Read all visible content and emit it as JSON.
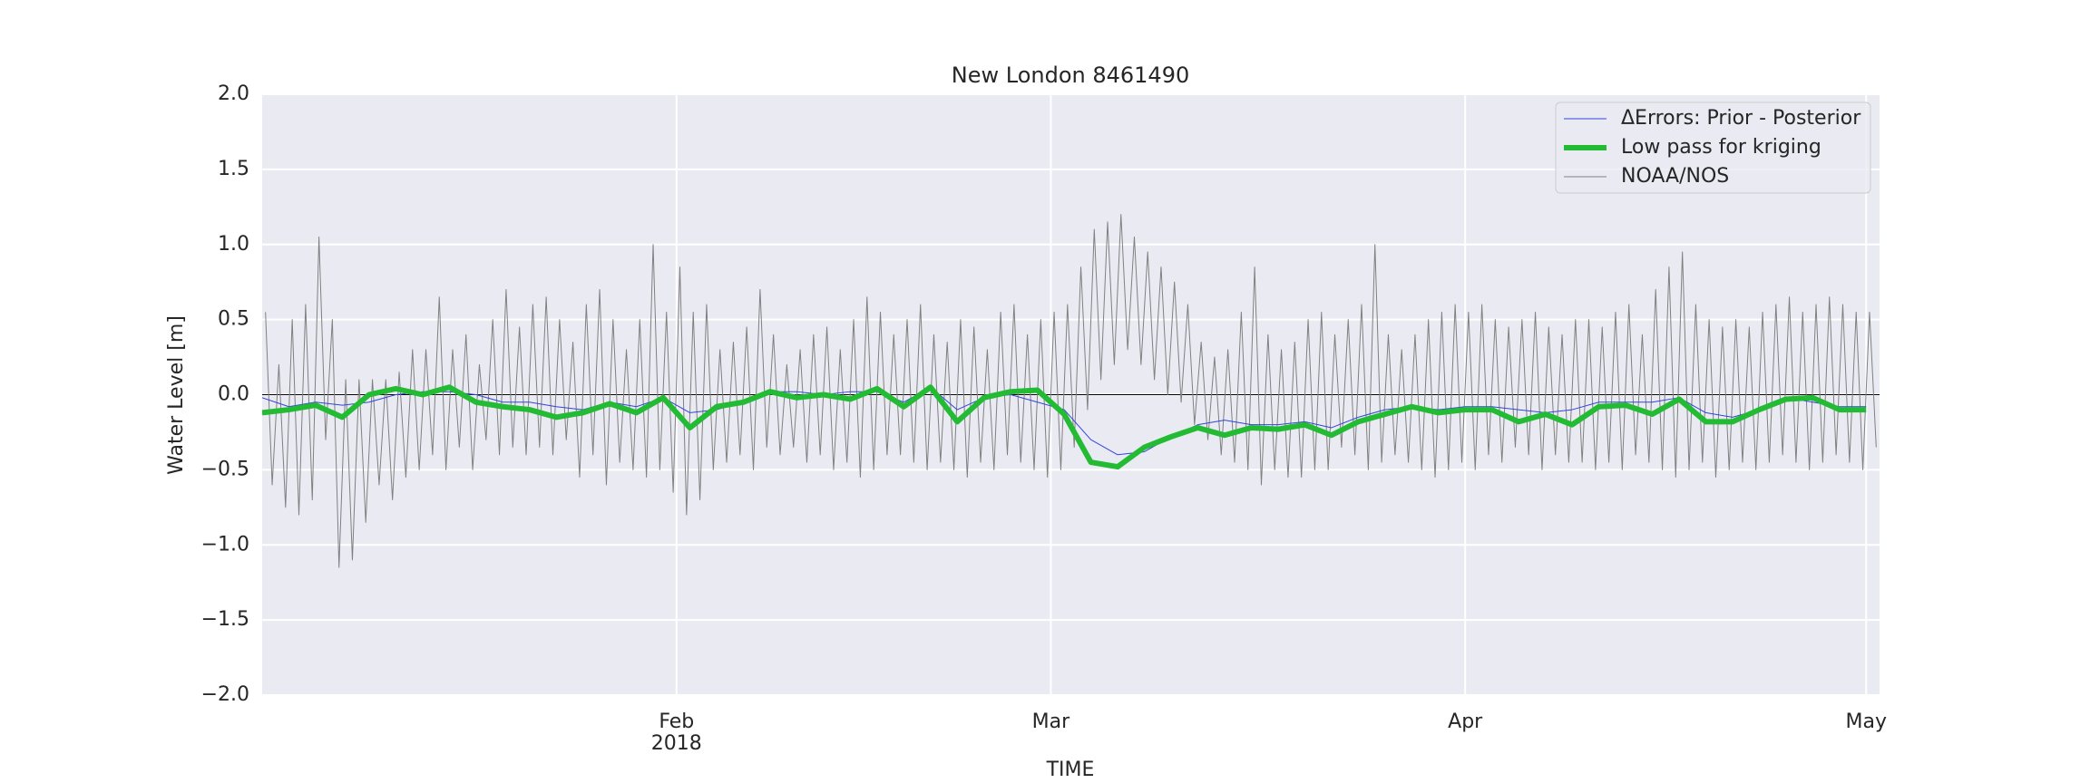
{
  "chart_data": {
    "type": "line",
    "title": "New London  8461490",
    "xlabel": "TIME",
    "ylabel": "Water Level [m]",
    "xlim": [
      "2018-01-01T00",
      "2018-05-02T00"
    ],
    "xticks": [
      {
        "value": "2018-02-01",
        "label": [
          "Feb",
          "2018"
        ]
      },
      {
        "value": "2018-03-01",
        "label": [
          "Mar"
        ]
      },
      {
        "value": "2018-04-01",
        "label": [
          "Apr"
        ]
      },
      {
        "value": "2018-05-01",
        "label": [
          "May"
        ]
      }
    ],
    "ylim": [
      -2,
      2
    ],
    "yticks": [
      {
        "value": -2,
        "label": "−2.0"
      },
      {
        "value": -1.5,
        "label": "−1.5"
      },
      {
        "value": -1,
        "label": "−1.0"
      },
      {
        "value": -0.5,
        "label": "−0.5"
      },
      {
        "value": 0,
        "label": "0.0"
      },
      {
        "value": 0.5,
        "label": "0.5"
      },
      {
        "value": 1,
        "label": "1.0"
      },
      {
        "value": 1.5,
        "label": "1.5"
      },
      {
        "value": 2,
        "label": "2.0"
      }
    ],
    "grid": true,
    "hline": 0,
    "legend": "upper right",
    "series": [
      {
        "name": "ΔErrors: Prior - Posterior",
        "color": "#3344dd",
        "linewidth": 1,
        "x": [
          "2018-01-01",
          "2018-01-03",
          "2018-01-05",
          "2018-01-07",
          "2018-01-09",
          "2018-01-11",
          "2018-01-13",
          "2018-01-15",
          "2018-01-17",
          "2018-01-19",
          "2018-01-21",
          "2018-01-23",
          "2018-01-25",
          "2018-01-27",
          "2018-01-29",
          "2018-01-31",
          "2018-02-02",
          "2018-02-04",
          "2018-02-06",
          "2018-02-08",
          "2018-02-10",
          "2018-02-12",
          "2018-02-14",
          "2018-02-16",
          "2018-02-18",
          "2018-02-20",
          "2018-02-22",
          "2018-02-24",
          "2018-02-26",
          "2018-02-28",
          "2018-03-02",
          "2018-03-04",
          "2018-03-06",
          "2018-03-08",
          "2018-03-10",
          "2018-03-12",
          "2018-03-14",
          "2018-03-16",
          "2018-03-18",
          "2018-03-20",
          "2018-03-22",
          "2018-03-24",
          "2018-03-26",
          "2018-03-28",
          "2018-03-30",
          "2018-04-01",
          "2018-04-03",
          "2018-04-05",
          "2018-04-07",
          "2018-04-09",
          "2018-04-11",
          "2018-04-13",
          "2018-04-15",
          "2018-04-17",
          "2018-04-19",
          "2018-04-21",
          "2018-04-23",
          "2018-04-25",
          "2018-04-27",
          "2018-04-29",
          "2018-05-01"
        ],
        "values": [
          -0.02,
          -0.08,
          -0.05,
          -0.07,
          -0.05,
          0.0,
          0.02,
          0.02,
          0.0,
          -0.05,
          -0.05,
          -0.08,
          -0.1,
          -0.05,
          -0.08,
          -0.02,
          -0.12,
          -0.1,
          -0.05,
          0.02,
          0.02,
          0.0,
          0.02,
          0.02,
          -0.05,
          0.05,
          -0.1,
          -0.02,
          0.0,
          -0.05,
          -0.1,
          -0.3,
          -0.4,
          -0.38,
          -0.28,
          -0.2,
          -0.17,
          -0.2,
          -0.2,
          -0.18,
          -0.22,
          -0.15,
          -0.1,
          -0.08,
          -0.1,
          -0.08,
          -0.08,
          -0.1,
          -0.12,
          -0.1,
          -0.05,
          -0.05,
          -0.05,
          -0.02,
          -0.12,
          -0.15,
          -0.1,
          -0.02,
          -0.05,
          -0.08,
          -0.08
        ]
      },
      {
        "name": "Low pass for kriging",
        "color": "#22bb33",
        "linewidth": 6,
        "x": [
          "2018-01-01",
          "2018-01-03",
          "2018-01-05",
          "2018-01-07",
          "2018-01-09",
          "2018-01-11",
          "2018-01-13",
          "2018-01-15",
          "2018-01-17",
          "2018-01-19",
          "2018-01-21",
          "2018-01-23",
          "2018-01-25",
          "2018-01-27",
          "2018-01-29",
          "2018-01-31",
          "2018-02-02",
          "2018-02-04",
          "2018-02-06",
          "2018-02-08",
          "2018-02-10",
          "2018-02-12",
          "2018-02-14",
          "2018-02-16",
          "2018-02-18",
          "2018-02-20",
          "2018-02-22",
          "2018-02-24",
          "2018-02-26",
          "2018-02-28",
          "2018-03-02",
          "2018-03-04",
          "2018-03-06",
          "2018-03-08",
          "2018-03-10",
          "2018-03-12",
          "2018-03-14",
          "2018-03-16",
          "2018-03-18",
          "2018-03-20",
          "2018-03-22",
          "2018-03-24",
          "2018-03-26",
          "2018-03-28",
          "2018-03-30",
          "2018-04-01",
          "2018-04-03",
          "2018-04-05",
          "2018-04-07",
          "2018-04-09",
          "2018-04-11",
          "2018-04-13",
          "2018-04-15",
          "2018-04-17",
          "2018-04-19",
          "2018-04-21",
          "2018-04-23",
          "2018-04-25",
          "2018-04-27",
          "2018-04-29",
          "2018-05-01"
        ],
        "values": [
          -0.12,
          -0.1,
          -0.07,
          -0.15,
          0.0,
          0.04,
          0.0,
          0.05,
          -0.05,
          -0.08,
          -0.1,
          -0.15,
          -0.12,
          -0.06,
          -0.12,
          -0.02,
          -0.22,
          -0.08,
          -0.05,
          0.02,
          -0.02,
          0.0,
          -0.03,
          0.04,
          -0.08,
          0.05,
          -0.18,
          -0.02,
          0.02,
          0.03,
          -0.13,
          -0.45,
          -0.48,
          -0.35,
          -0.28,
          -0.22,
          -0.27,
          -0.22,
          -0.23,
          -0.2,
          -0.27,
          -0.18,
          -0.13,
          -0.08,
          -0.12,
          -0.1,
          -0.1,
          -0.18,
          -0.13,
          -0.2,
          -0.08,
          -0.07,
          -0.13,
          -0.03,
          -0.18,
          -0.18,
          -0.1,
          -0.03,
          -0.02,
          -0.1,
          -0.1
        ]
      },
      {
        "name": "NOAA/NOS",
        "color": "#808080",
        "linewidth": 1,
        "x": [
          "2018-01-01T06",
          "2018-01-01T18",
          "2018-01-02T06",
          "2018-01-02T18",
          "2018-01-03T06",
          "2018-01-03T18",
          "2018-01-04T06",
          "2018-01-04T18",
          "2018-01-05T06",
          "2018-01-05T18",
          "2018-01-06T06",
          "2018-01-06T18",
          "2018-01-07T06",
          "2018-01-07T18",
          "2018-01-08T06",
          "2018-01-08T18",
          "2018-01-09T06",
          "2018-01-09T18",
          "2018-01-10T06",
          "2018-01-10T18",
          "2018-01-11T06",
          "2018-01-11T18",
          "2018-01-12T06",
          "2018-01-12T18",
          "2018-01-13T06",
          "2018-01-13T18",
          "2018-01-14T06",
          "2018-01-14T18",
          "2018-01-15T06",
          "2018-01-15T18",
          "2018-01-16T06",
          "2018-01-16T18",
          "2018-01-17T06",
          "2018-01-17T18",
          "2018-01-18T06",
          "2018-01-18T18",
          "2018-01-19T06",
          "2018-01-19T18",
          "2018-01-20T06",
          "2018-01-20T18",
          "2018-01-21T06",
          "2018-01-21T18",
          "2018-01-22T06",
          "2018-01-22T18",
          "2018-01-23T06",
          "2018-01-23T18",
          "2018-01-24T06",
          "2018-01-24T18",
          "2018-01-25T06",
          "2018-01-25T18",
          "2018-01-26T06",
          "2018-01-26T18",
          "2018-01-27T06",
          "2018-01-27T18",
          "2018-01-28T06",
          "2018-01-28T18",
          "2018-01-29T06",
          "2018-01-29T18",
          "2018-01-30T06",
          "2018-01-30T18",
          "2018-01-31T06",
          "2018-01-31T18",
          "2018-02-01T06",
          "2018-02-01T18",
          "2018-02-02T06",
          "2018-02-02T18",
          "2018-02-03T06",
          "2018-02-03T18",
          "2018-02-04T06",
          "2018-02-04T18",
          "2018-02-05T06",
          "2018-02-05T18",
          "2018-02-06T06",
          "2018-02-06T18",
          "2018-02-07T06",
          "2018-02-07T18",
          "2018-02-08T06",
          "2018-02-08T18",
          "2018-02-09T06",
          "2018-02-09T18",
          "2018-02-10T06",
          "2018-02-10T18",
          "2018-02-11T06",
          "2018-02-11T18",
          "2018-02-12T06",
          "2018-02-12T18",
          "2018-02-13T06",
          "2018-02-13T18",
          "2018-02-14T06",
          "2018-02-14T18",
          "2018-02-15T06",
          "2018-02-15T18",
          "2018-02-16T06",
          "2018-02-16T18",
          "2018-02-17T06",
          "2018-02-17T18",
          "2018-02-18T06",
          "2018-02-18T18",
          "2018-02-19T06",
          "2018-02-19T18",
          "2018-02-20T06",
          "2018-02-20T18",
          "2018-02-21T06",
          "2018-02-21T18",
          "2018-02-22T06",
          "2018-02-22T18",
          "2018-02-23T06",
          "2018-02-23T18",
          "2018-02-24T06",
          "2018-02-24T18",
          "2018-02-25T06",
          "2018-02-25T18",
          "2018-02-26T06",
          "2018-02-26T18",
          "2018-02-27T06",
          "2018-02-27T18",
          "2018-02-28T06",
          "2018-02-28T18",
          "2018-03-01T06",
          "2018-03-01T18",
          "2018-03-02T06",
          "2018-03-02T18",
          "2018-03-03T06",
          "2018-03-03T18",
          "2018-03-04T06",
          "2018-03-04T18",
          "2018-03-05T06",
          "2018-03-05T18",
          "2018-03-06T06",
          "2018-03-06T18",
          "2018-03-07T06",
          "2018-03-07T18",
          "2018-03-08T06",
          "2018-03-08T18",
          "2018-03-09T06",
          "2018-03-09T18",
          "2018-03-10T06",
          "2018-03-10T18",
          "2018-03-11T06",
          "2018-03-11T18",
          "2018-03-12T06",
          "2018-03-12T18",
          "2018-03-13T06",
          "2018-03-13T18",
          "2018-03-14T06",
          "2018-03-14T18",
          "2018-03-15T06",
          "2018-03-15T18",
          "2018-03-16T06",
          "2018-03-16T18",
          "2018-03-17T06",
          "2018-03-17T18",
          "2018-03-18T06",
          "2018-03-18T18",
          "2018-03-19T06",
          "2018-03-19T18",
          "2018-03-20T06",
          "2018-03-20T18",
          "2018-03-21T06",
          "2018-03-21T18",
          "2018-03-22T06",
          "2018-03-22T18",
          "2018-03-23T06",
          "2018-03-23T18",
          "2018-03-24T06",
          "2018-03-24T18",
          "2018-03-25T06",
          "2018-03-25T18",
          "2018-03-26T06",
          "2018-03-26T18",
          "2018-03-27T06",
          "2018-03-27T18",
          "2018-03-28T06",
          "2018-03-28T18",
          "2018-03-29T06",
          "2018-03-29T18",
          "2018-03-30T06",
          "2018-03-30T18",
          "2018-03-31T06",
          "2018-03-31T18",
          "2018-04-01T06",
          "2018-04-01T18",
          "2018-04-02T06",
          "2018-04-02T18",
          "2018-04-03T06",
          "2018-04-03T18",
          "2018-04-04T06",
          "2018-04-04T18",
          "2018-04-05T06",
          "2018-04-05T18",
          "2018-04-06T06",
          "2018-04-06T18",
          "2018-04-07T06",
          "2018-04-07T18",
          "2018-04-08T06",
          "2018-04-08T18",
          "2018-04-09T06",
          "2018-04-09T18",
          "2018-04-10T06",
          "2018-04-10T18",
          "2018-04-11T06",
          "2018-04-11T18",
          "2018-04-12T06",
          "2018-04-12T18",
          "2018-04-13T06",
          "2018-04-13T18",
          "2018-04-14T06",
          "2018-04-14T18",
          "2018-04-15T06",
          "2018-04-15T18",
          "2018-04-16T06",
          "2018-04-16T18",
          "2018-04-17T06",
          "2018-04-17T18",
          "2018-04-18T06",
          "2018-04-18T18",
          "2018-04-19T06",
          "2018-04-19T18",
          "2018-04-20T06",
          "2018-04-20T18",
          "2018-04-21T06",
          "2018-04-21T18",
          "2018-04-22T06",
          "2018-04-22T18",
          "2018-04-23T06",
          "2018-04-23T18",
          "2018-04-24T06",
          "2018-04-24T18",
          "2018-04-25T06",
          "2018-04-25T18",
          "2018-04-26T06",
          "2018-04-26T18",
          "2018-04-27T06",
          "2018-04-27T18",
          "2018-04-28T06",
          "2018-04-28T18",
          "2018-04-29T06",
          "2018-04-29T18",
          "2018-04-30T06",
          "2018-04-30T18",
          "2018-05-01T06",
          "2018-05-01T18"
        ],
        "values": [
          0.55,
          -0.6,
          0.2,
          -0.75,
          0.5,
          -0.8,
          0.6,
          -0.7,
          1.05,
          -0.3,
          0.5,
          -1.15,
          0.1,
          -1.1,
          0.1,
          -0.85,
          0.1,
          -0.6,
          0.1,
          -0.7,
          0.15,
          -0.55,
          0.3,
          -0.5,
          0.3,
          -0.4,
          0.65,
          -0.5,
          0.3,
          -0.35,
          0.4,
          -0.5,
          0.2,
          -0.3,
          0.5,
          -0.4,
          0.7,
          -0.35,
          0.45,
          -0.4,
          0.6,
          -0.35,
          0.65,
          -0.4,
          0.5,
          -0.3,
          0.35,
          -0.55,
          0.6,
          -0.4,
          0.7,
          -0.6,
          0.5,
          -0.45,
          0.3,
          -0.5,
          0.5,
          -0.55,
          1.0,
          -0.5,
          0.55,
          -0.65,
          0.85,
          -0.8,
          0.55,
          -0.7,
          0.6,
          -0.5,
          0.3,
          -0.45,
          0.35,
          -0.4,
          0.45,
          -0.5,
          0.7,
          -0.35,
          0.4,
          -0.4,
          0.2,
          -0.35,
          0.3,
          -0.45,
          0.4,
          -0.4,
          0.45,
          -0.5,
          0.3,
          -0.45,
          0.5,
          -0.55,
          0.65,
          -0.5,
          0.55,
          -0.4,
          0.4,
          -0.4,
          0.5,
          -0.45,
          0.6,
          -0.5,
          0.4,
          -0.45,
          0.35,
          -0.5,
          0.5,
          -0.55,
          0.45,
          -0.45,
          0.3,
          -0.5,
          0.55,
          -0.4,
          0.6,
          -0.45,
          0.4,
          -0.5,
          0.5,
          -0.55,
          0.55,
          -0.5,
          0.6,
          -0.35,
          0.85,
          -0.1,
          1.1,
          0.1,
          1.15,
          0.2,
          1.2,
          0.3,
          1.05,
          0.2,
          0.95,
          0.1,
          0.85,
          0.0,
          0.75,
          -0.05,
          0.6,
          -0.2,
          0.35,
          -0.3,
          0.25,
          -0.4,
          0.3,
          -0.45,
          0.55,
          -0.5,
          0.85,
          -0.6,
          0.4,
          -0.5,
          0.3,
          -0.55,
          0.35,
          -0.55,
          0.5,
          -0.5,
          0.55,
          -0.5,
          0.4,
          -0.35,
          0.5,
          -0.4,
          0.6,
          -0.5,
          1.0,
          -0.45,
          0.4,
          -0.4,
          0.3,
          -0.45,
          0.4,
          -0.5,
          0.5,
          -0.55,
          0.55,
          -0.5,
          0.6,
          -0.45,
          0.55,
          -0.5,
          0.6,
          -0.4,
          0.5,
          -0.45,
          0.45,
          -0.35,
          0.5,
          -0.4,
          0.55,
          -0.5,
          0.45,
          -0.4,
          0.4,
          -0.45,
          0.5,
          -0.45,
          0.5,
          -0.5,
          0.45,
          -0.45,
          0.55,
          -0.5,
          0.6,
          -0.4,
          0.4,
          -0.45,
          0.7,
          -0.5,
          0.85,
          -0.55,
          0.95,
          -0.5,
          0.6,
          -0.45,
          0.5,
          -0.55,
          0.45,
          -0.5,
          0.5,
          -0.45,
          0.45,
          -0.5,
          0.55,
          -0.45,
          0.6,
          -0.4,
          0.65,
          -0.45,
          0.55,
          -0.5,
          0.6,
          -0.45,
          0.65,
          -0.4,
          0.6,
          -0.45,
          0.55,
          -0.5,
          0.55,
          -0.35
        ]
      }
    ]
  }
}
